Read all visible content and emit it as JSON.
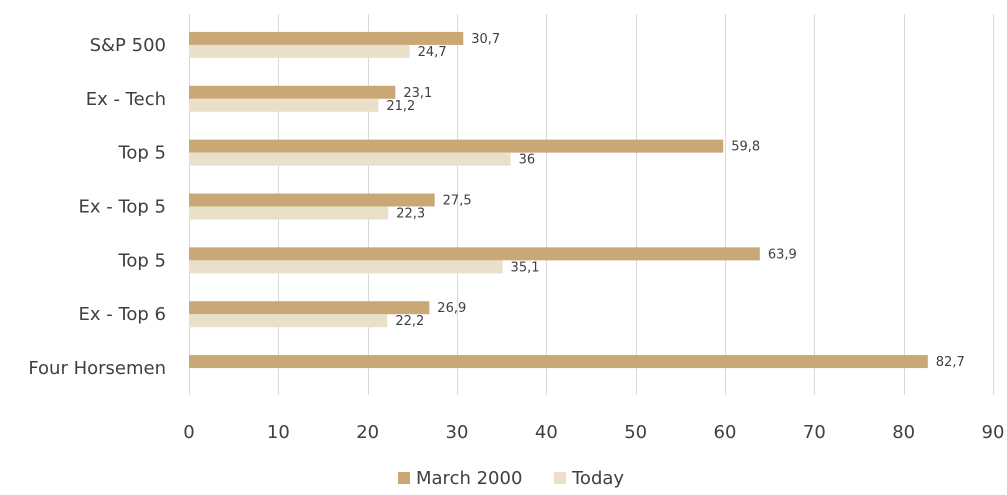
{
  "chart_data": {
    "type": "bar",
    "orientation": "horizontal",
    "title": "",
    "xlabel": "",
    "ylabel": "",
    "categories": [
      "S&P 500",
      "Ex - Tech",
      "Top 5",
      "Ex - Top 5",
      "Top 5",
      "Ex - Top 6",
      "Four Horsemen"
    ],
    "series": [
      {
        "name": "March 2000",
        "color": "#c9a876",
        "values": [
          30.7,
          23.1,
          59.8,
          27.5,
          63.9,
          26.9,
          82.7
        ],
        "labels": [
          "30,7",
          "23,1",
          "59,8",
          "27,5",
          "63,9",
          "26,9",
          "82,7"
        ]
      },
      {
        "name": "Today",
        "color": "#eadfc8",
        "values": [
          24.7,
          21.2,
          36,
          22.3,
          35.1,
          22.2,
          null
        ],
        "labels": [
          "24,7",
          "21,2",
          "36",
          "22,3",
          "35,1",
          "22,2",
          ""
        ]
      }
    ],
    "xlim": [
      0,
      90
    ],
    "xticks": [
      0,
      10,
      20,
      30,
      40,
      50,
      60,
      70,
      80,
      90
    ],
    "grid": "vertical",
    "legend": "bottom"
  }
}
